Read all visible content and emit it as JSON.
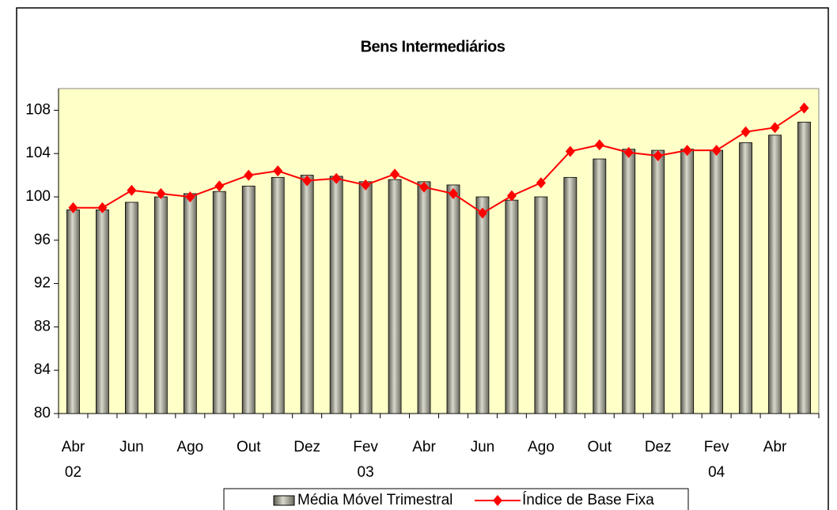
{
  "chart_data": {
    "type": "bar_line",
    "title": "Bens Intermediários",
    "categories": [
      "Abr 02",
      null,
      "Jun",
      null,
      "Ago",
      null,
      "Out",
      null,
      "Dez",
      null,
      "Fev 03",
      null,
      "Abr",
      null,
      "Jun",
      null,
      "Ago",
      null,
      "Out",
      null,
      "Dez",
      null,
      "Fev 04",
      null,
      "Abr",
      null
    ],
    "series": [
      {
        "name": "Média Móvel Trimestral",
        "kind": "bar",
        "color": "#a0a090",
        "values": [
          98.8,
          98.8,
          99.5,
          100.0,
          100.3,
          100.5,
          101.0,
          101.8,
          102.0,
          101.9,
          101.4,
          101.6,
          101.4,
          101.1,
          100.0,
          99.7,
          100.0,
          101.8,
          103.5,
          104.4,
          104.3,
          104.4,
          104.3,
          105.0,
          105.7,
          106.9
        ]
      },
      {
        "name": "Índice de Base Fixa",
        "kind": "line",
        "color": "#ff0000",
        "values": [
          99.0,
          99.0,
          100.6,
          100.3,
          100.0,
          101.0,
          102.0,
          102.4,
          101.5,
          101.7,
          101.1,
          102.1,
          100.9,
          100.3,
          98.5,
          100.1,
          101.3,
          104.2,
          104.8,
          104.1,
          103.8,
          104.3,
          104.3,
          106.0,
          106.4,
          108.2
        ]
      }
    ],
    "ylim": [
      80,
      110
    ],
    "yticks": [
      80,
      84,
      88,
      92,
      96,
      100,
      104,
      108
    ],
    "grid": false,
    "legend": "bottom"
  }
}
